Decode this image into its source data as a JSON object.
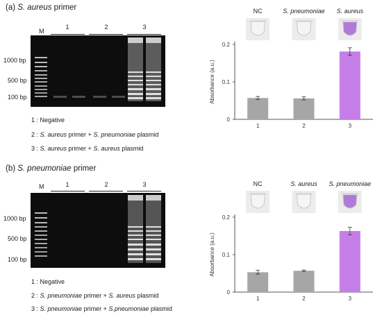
{
  "panels": [
    {
      "title_prefix": "(a) ",
      "title_italic": "S. aureus",
      "title_suffix": " primer",
      "gel": {
        "marker_label": "M",
        "lanes": [
          "1",
          "2",
          "3"
        ],
        "bp_labels": [
          "1000 bp",
          "500 bp",
          "100 bp"
        ]
      },
      "legend": [
        {
          "parts": [
            "1 : Negative"
          ]
        },
        {
          "parts": [
            "2 : ",
            "S. aureus",
            " primer + ",
            "S. pneumoniae",
            " plasmid"
          ]
        },
        {
          "parts": [
            "3 : ",
            "S. aureus",
            " primer + ",
            "S. aureus",
            " plasmid"
          ]
        }
      ],
      "tube_labels": [
        "NC",
        "S. pneumoniae",
        "S. aureus"
      ]
    },
    {
      "title_prefix": "(b) ",
      "title_italic": "S. pneumoniae",
      "title_suffix": " primer",
      "gel": {
        "marker_label": "M",
        "lanes": [
          "1",
          "2",
          "3"
        ],
        "bp_labels": [
          "1000 bp",
          "500 bp",
          "100 bp"
        ]
      },
      "legend": [
        {
          "parts": [
            "1 : Negative"
          ]
        },
        {
          "parts": [
            "2 : ",
            "S. pneumoniae",
            " primer + ",
            "S. aureus",
            " plasmid"
          ]
        },
        {
          "parts": [
            "3 : ",
            "S. pneumoniae",
            " primer + ",
            "S.pneumoniae",
            " plasmid"
          ]
        }
      ],
      "tube_labels": [
        "NC",
        "S. aureus",
        "S. pneumoniae"
      ]
    }
  ],
  "colors": {
    "gray_bar": "#a6a6a6",
    "purple_bar": "#c57ee8",
    "gel_bg": "#0d0d0d"
  },
  "chart_data": [
    {
      "type": "bar",
      "categories": [
        "1",
        "2",
        "3"
      ],
      "values": [
        0.057,
        0.056,
        0.181
      ],
      "errors": [
        0.004,
        0.004,
        0.01
      ],
      "bar_colors": [
        "#a6a6a6",
        "#a6a6a6",
        "#c57ee8"
      ],
      "ylabel": "Absorbance (a.u.)",
      "ylim": [
        0,
        0.2
      ],
      "yticks": [
        0,
        0.1,
        0.2
      ],
      "yticklabels": [
        "0",
        "0.1",
        "0.2"
      ]
    },
    {
      "type": "bar",
      "categories": [
        "1",
        "2",
        "3"
      ],
      "values": [
        0.053,
        0.057,
        0.163
      ],
      "errors": [
        0.005,
        0.002,
        0.01
      ],
      "bar_colors": [
        "#a6a6a6",
        "#a6a6a6",
        "#c57ee8"
      ],
      "ylabel": "Absorbance (a.u.)",
      "ylim": [
        0,
        0.2
      ],
      "yticks": [
        0,
        0.1,
        0.2
      ],
      "yticklabels": [
        "0",
        "0.1",
        "0.2"
      ]
    }
  ]
}
